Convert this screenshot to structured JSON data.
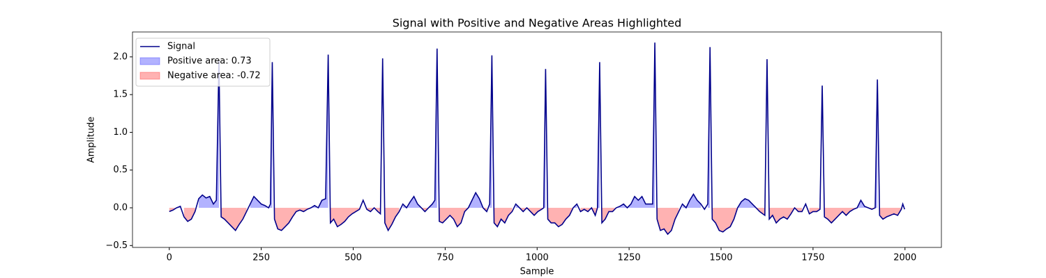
{
  "chart_data": {
    "type": "line",
    "title": "Signal with Positive and Negative Areas Highlighted",
    "x_label": "Sample",
    "y_label": "Amplitude",
    "x": [
      0,
      10,
      20,
      30,
      40,
      50,
      60,
      70,
      80,
      90,
      100,
      110,
      120,
      128,
      135,
      141,
      150,
      160,
      170,
      180,
      190,
      200,
      210,
      220,
      230,
      240,
      250,
      260,
      270,
      275,
      280,
      286,
      295,
      305,
      315,
      325,
      335,
      345,
      355,
      365,
      375,
      385,
      395,
      405,
      415,
      425,
      432,
      438,
      447,
      457,
      467,
      477,
      487,
      497,
      507,
      517,
      527,
      537,
      547,
      557,
      567,
      574,
      580,
      586,
      595,
      605,
      615,
      625,
      635,
      645,
      655,
      665,
      675,
      685,
      695,
      705,
      715,
      722,
      728,
      734,
      743,
      753,
      763,
      773,
      783,
      793,
      803,
      813,
      823,
      833,
      843,
      853,
      863,
      871,
      877,
      883,
      892,
      902,
      912,
      922,
      932,
      942,
      952,
      962,
      972,
      982,
      992,
      1002,
      1012,
      1018,
      1023,
      1029,
      1038,
      1048,
      1058,
      1068,
      1078,
      1088,
      1098,
      1108,
      1118,
      1128,
      1138,
      1148,
      1158,
      1164,
      1170,
      1176,
      1185,
      1195,
      1205,
      1215,
      1225,
      1235,
      1245,
      1255,
      1265,
      1275,
      1285,
      1295,
      1305,
      1314,
      1320,
      1326,
      1335,
      1345,
      1355,
      1365,
      1375,
      1385,
      1395,
      1405,
      1415,
      1425,
      1435,
      1445,
      1455,
      1464,
      1470,
      1476,
      1485,
      1495,
      1505,
      1515,
      1525,
      1535,
      1545,
      1555,
      1565,
      1575,
      1585,
      1595,
      1605,
      1619,
      1625,
      1631,
      1640,
      1650,
      1660,
      1670,
      1680,
      1690,
      1700,
      1710,
      1720,
      1730,
      1740,
      1750,
      1760,
      1769,
      1775,
      1781,
      1790,
      1800,
      1810,
      1820,
      1830,
      1840,
      1850,
      1860,
      1870,
      1880,
      1890,
      1900,
      1910,
      1919,
      1925,
      1931,
      1940,
      1950,
      1960,
      1970,
      1980,
      1990,
      1994,
      1999
    ],
    "series": [
      {
        "name": "Signal",
        "color": "#00008b",
        "values": [
          -0.05,
          -0.03,
          0.0,
          0.02,
          -0.12,
          -0.18,
          -0.15,
          -0.05,
          0.12,
          0.17,
          0.13,
          0.15,
          0.05,
          0.1,
          1.95,
          -0.12,
          -0.15,
          -0.2,
          -0.25,
          -0.3,
          -0.22,
          -0.15,
          -0.05,
          0.05,
          0.15,
          0.1,
          0.05,
          0.03,
          0.0,
          0.05,
          1.93,
          -0.15,
          -0.28,
          -0.3,
          -0.25,
          -0.2,
          -0.12,
          -0.05,
          -0.03,
          -0.05,
          -0.02,
          0.0,
          0.03,
          0.0,
          0.1,
          0.12,
          2.03,
          -0.2,
          -0.15,
          -0.25,
          -0.22,
          -0.18,
          -0.12,
          -0.08,
          -0.05,
          -0.02,
          0.1,
          -0.02,
          -0.05,
          0.0,
          -0.05,
          -0.08,
          1.98,
          -0.2,
          -0.3,
          -0.22,
          -0.12,
          -0.05,
          0.05,
          0.0,
          0.08,
          0.15,
          0.05,
          0.0,
          -0.05,
          0.0,
          0.05,
          0.1,
          2.11,
          -0.18,
          -0.2,
          -0.15,
          -0.1,
          -0.15,
          -0.25,
          -0.2,
          -0.05,
          0.0,
          0.1,
          0.2,
          0.12,
          0.0,
          -0.05,
          0.05,
          2.02,
          -0.2,
          -0.25,
          -0.15,
          -0.2,
          -0.1,
          -0.05,
          0.05,
          0.0,
          -0.05,
          0.0,
          -0.05,
          -0.1,
          -0.05,
          -0.02,
          0.0,
          1.84,
          -0.15,
          -0.2,
          -0.2,
          -0.25,
          -0.22,
          -0.15,
          -0.1,
          0.0,
          0.05,
          -0.05,
          -0.02,
          -0.05,
          0.0,
          -0.1,
          0.0,
          1.93,
          -0.2,
          -0.15,
          -0.05,
          -0.05,
          0.0,
          0.02,
          0.05,
          0.0,
          0.05,
          0.15,
          0.1,
          0.15,
          0.05,
          0.05,
          0.05,
          2.19,
          -0.15,
          -0.3,
          -0.28,
          -0.35,
          -0.3,
          -0.15,
          -0.05,
          0.05,
          0.0,
          0.1,
          0.18,
          0.1,
          0.05,
          -0.02,
          0.05,
          2.13,
          -0.15,
          -0.2,
          -0.3,
          -0.32,
          -0.28,
          -0.25,
          -0.15,
          0.0,
          0.08,
          0.12,
          0.1,
          0.05,
          0.0,
          -0.05,
          -0.1,
          1.97,
          -0.15,
          -0.1,
          -0.2,
          -0.15,
          -0.12,
          -0.15,
          -0.08,
          0.0,
          -0.05,
          -0.05,
          0.05,
          -0.08,
          -0.05,
          -0.05,
          -0.02,
          1.62,
          -0.12,
          -0.15,
          -0.2,
          -0.15,
          -0.1,
          -0.05,
          -0.1,
          -0.05,
          -0.02,
          0.0,
          0.1,
          0.02,
          0.0,
          -0.02,
          0.0,
          1.7,
          -0.1,
          -0.15,
          -0.12,
          -0.1,
          -0.08,
          -0.1,
          -0.02,
          0.05,
          -0.02
        ]
      }
    ],
    "fills": [
      {
        "name": "Positive area: 0.73",
        "color": "#0000ff",
        "opacity": 0.3,
        "where": "above"
      },
      {
        "name": "Negative area: -0.72",
        "color": "#ff0000",
        "opacity": 0.3,
        "where": "below"
      }
    ],
    "xlim": [
      -100,
      2099
    ],
    "ylim": [
      -0.525,
      2.33
    ],
    "xticks": [
      0,
      250,
      500,
      750,
      1000,
      1250,
      1500,
      1750,
      2000
    ],
    "yticks": [
      {
        "value": -0.5,
        "label": "−0.5"
      },
      {
        "value": 0,
        "label": "0.0"
      },
      0.5,
      {
        "value": 1,
        "label": "1.0"
      },
      1.5,
      {
        "value": 2,
        "label": "2.0"
      }
    ],
    "legend": "upper left"
  }
}
